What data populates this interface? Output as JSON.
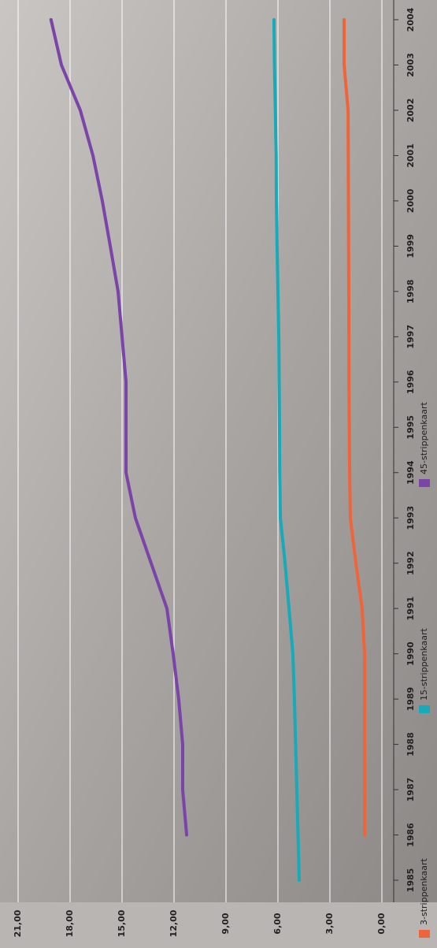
{
  "chart_data": {
    "type": "line",
    "categories": [
      "1985",
      "1986",
      "1987",
      "1988",
      "1989",
      "1990",
      "1991",
      "1992",
      "1993",
      "1994",
      "1995",
      "1996",
      "1997",
      "1998",
      "1999",
      "2000",
      "2001",
      "2002",
      "2003",
      "2004"
    ],
    "series": [
      {
        "name": "3-strippenkaart",
        "color": "#f0643a",
        "values": [
          null,
          1.0,
          1.0,
          1.0,
          1.0,
          1.0,
          1.14,
          1.5,
          1.82,
          1.86,
          1.88,
          1.9,
          1.9,
          1.91,
          1.92,
          1.93,
          1.94,
          1.95,
          2.18,
          2.18
        ]
      },
      {
        "name": "15-strippenkaart",
        "color": "#17aab8",
        "values": [
          4.77,
          4.84,
          4.91,
          4.98,
          5.05,
          5.14,
          5.36,
          5.59,
          5.86,
          5.9,
          5.91,
          5.93,
          5.95,
          6.0,
          6.05,
          6.09,
          6.1,
          6.15,
          6.2,
          6.23
        ]
      },
      {
        "name": "45-strippenkaart",
        "color": "#7b44a8",
        "values": [
          null,
          11.27,
          11.5,
          11.5,
          11.73,
          12.05,
          12.41,
          13.32,
          14.23,
          14.77,
          14.77,
          14.77,
          15.0,
          15.23,
          15.68,
          16.14,
          16.68,
          17.41,
          18.5,
          19.1
        ]
      }
    ],
    "xlim": [
      0,
      21
    ],
    "xticks": [
      {
        "value": 0,
        "label": "0,00"
      },
      {
        "value": 3,
        "label": "3,00"
      },
      {
        "value": 6,
        "label": "6,00"
      },
      {
        "value": 9,
        "label": "9,00"
      },
      {
        "value": 12,
        "label": "12,00"
      },
      {
        "value": 15,
        "label": "15,00"
      },
      {
        "value": 18,
        "label": "18,00"
      },
      {
        "value": 21,
        "label": "21,00"
      }
    ],
    "grid": true
  }
}
